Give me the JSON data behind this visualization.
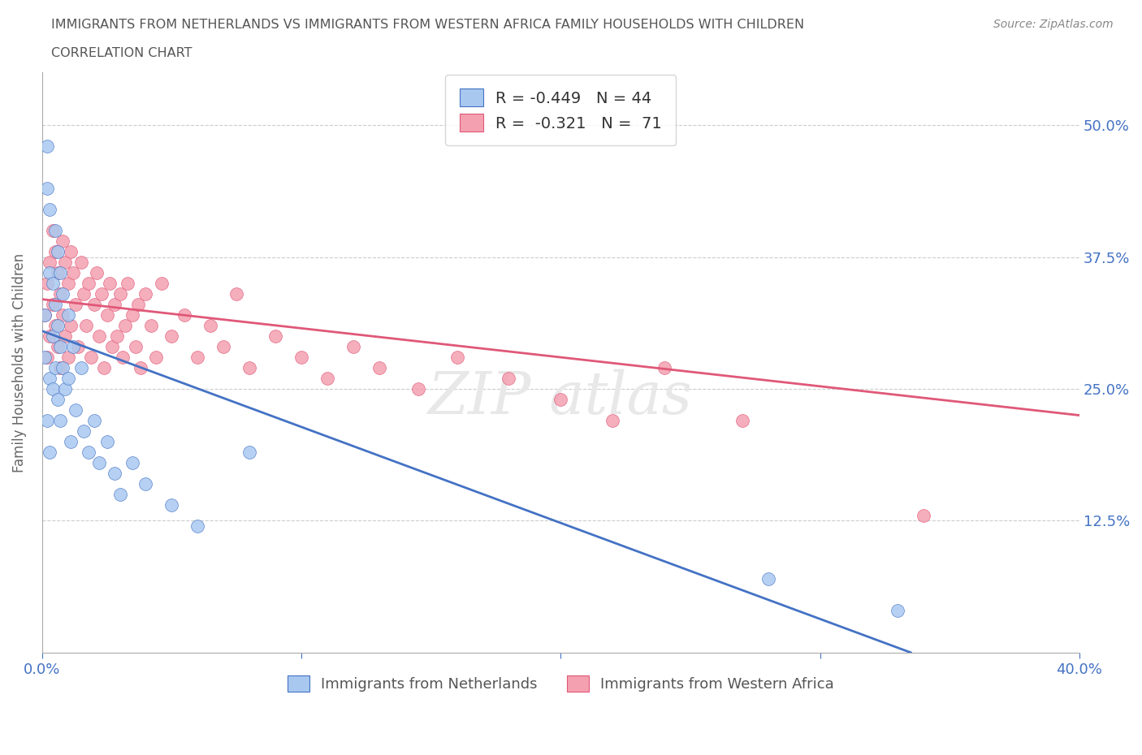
{
  "title_line1": "IMMIGRANTS FROM NETHERLANDS VS IMMIGRANTS FROM WESTERN AFRICA FAMILY HOUSEHOLDS WITH CHILDREN",
  "title_line2": "CORRELATION CHART",
  "source_text": "Source: ZipAtlas.com",
  "ylabel": "Family Households with Children",
  "legend_label1": "Immigrants from Netherlands",
  "legend_label2": "Immigrants from Western Africa",
  "r1": -0.449,
  "n1": 44,
  "r2": -0.321,
  "n2": 71,
  "color1": "#a8c8f0",
  "color2": "#f4a0b0",
  "line_color1": "#4472c4",
  "line_color2": "#e05878",
  "axis_label_color": "#4472c4",
  "xlim": [
    0.0,
    0.4
  ],
  "ylim": [
    0.0,
    0.55
  ],
  "blue_x": [
    0.001,
    0.001,
    0.002,
    0.002,
    0.002,
    0.003,
    0.003,
    0.003,
    0.003,
    0.004,
    0.004,
    0.004,
    0.005,
    0.005,
    0.005,
    0.006,
    0.006,
    0.006,
    0.007,
    0.007,
    0.007,
    0.008,
    0.008,
    0.009,
    0.01,
    0.01,
    0.011,
    0.012,
    0.013,
    0.015,
    0.016,
    0.018,
    0.02,
    0.022,
    0.025,
    0.028,
    0.03,
    0.035,
    0.04,
    0.05,
    0.06,
    0.08,
    0.28,
    0.33
  ],
  "blue_y": [
    0.28,
    0.32,
    0.44,
    0.48,
    0.22,
    0.42,
    0.36,
    0.26,
    0.19,
    0.35,
    0.3,
    0.25,
    0.4,
    0.33,
    0.27,
    0.38,
    0.31,
    0.24,
    0.36,
    0.29,
    0.22,
    0.34,
    0.27,
    0.25,
    0.32,
    0.26,
    0.2,
    0.29,
    0.23,
    0.27,
    0.21,
    0.19,
    0.22,
    0.18,
    0.2,
    0.17,
    0.15,
    0.18,
    0.16,
    0.14,
    0.12,
    0.19,
    0.07,
    0.04
  ],
  "pink_x": [
    0.001,
    0.002,
    0.002,
    0.003,
    0.003,
    0.004,
    0.004,
    0.005,
    0.005,
    0.006,
    0.006,
    0.007,
    0.007,
    0.008,
    0.008,
    0.009,
    0.009,
    0.01,
    0.01,
    0.011,
    0.011,
    0.012,
    0.013,
    0.014,
    0.015,
    0.016,
    0.017,
    0.018,
    0.019,
    0.02,
    0.021,
    0.022,
    0.023,
    0.024,
    0.025,
    0.026,
    0.027,
    0.028,
    0.029,
    0.03,
    0.031,
    0.032,
    0.033,
    0.035,
    0.036,
    0.037,
    0.038,
    0.04,
    0.042,
    0.044,
    0.046,
    0.05,
    0.055,
    0.06,
    0.065,
    0.07,
    0.075,
    0.08,
    0.09,
    0.1,
    0.11,
    0.12,
    0.13,
    0.145,
    0.16,
    0.18,
    0.2,
    0.22,
    0.24,
    0.27,
    0.34
  ],
  "pink_y": [
    0.32,
    0.35,
    0.28,
    0.37,
    0.3,
    0.4,
    0.33,
    0.38,
    0.31,
    0.36,
    0.29,
    0.34,
    0.27,
    0.39,
    0.32,
    0.37,
    0.3,
    0.35,
    0.28,
    0.38,
    0.31,
    0.36,
    0.33,
    0.29,
    0.37,
    0.34,
    0.31,
    0.35,
    0.28,
    0.33,
    0.36,
    0.3,
    0.34,
    0.27,
    0.32,
    0.35,
    0.29,
    0.33,
    0.3,
    0.34,
    0.28,
    0.31,
    0.35,
    0.32,
    0.29,
    0.33,
    0.27,
    0.34,
    0.31,
    0.28,
    0.35,
    0.3,
    0.32,
    0.28,
    0.31,
    0.29,
    0.34,
    0.27,
    0.3,
    0.28,
    0.26,
    0.29,
    0.27,
    0.25,
    0.28,
    0.26,
    0.24,
    0.22,
    0.27,
    0.22,
    0.13
  ],
  "blue_line_x": [
    0.0,
    0.335
  ],
  "blue_line_y": [
    0.305,
    0.0
  ],
  "pink_line_x": [
    0.0,
    0.4
  ],
  "pink_line_y": [
    0.335,
    0.225
  ]
}
